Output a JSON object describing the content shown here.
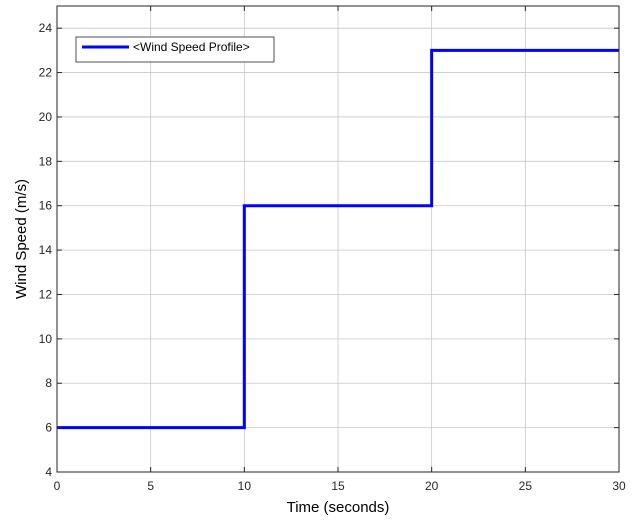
{
  "chart_data": {
    "type": "line",
    "line_style": "stairs",
    "title": "",
    "xlabel": "Time (seconds)",
    "ylabel": "Wind Speed (m/s)",
    "xlim": [
      0,
      30
    ],
    "ylim": [
      4,
      25
    ],
    "xticks": [
      0,
      5,
      10,
      15,
      20,
      25,
      30
    ],
    "yticks": [
      4,
      6,
      8,
      10,
      12,
      14,
      16,
      18,
      20,
      22,
      24
    ],
    "grid": true,
    "legend_position": "top-left",
    "series": [
      {
        "name": "<Wind Speed Profile>",
        "color": "#0000ff",
        "x": [
          0,
          10,
          10,
          20,
          20,
          30
        ],
        "y": [
          6,
          6,
          16,
          16,
          23,
          23
        ]
      }
    ]
  }
}
